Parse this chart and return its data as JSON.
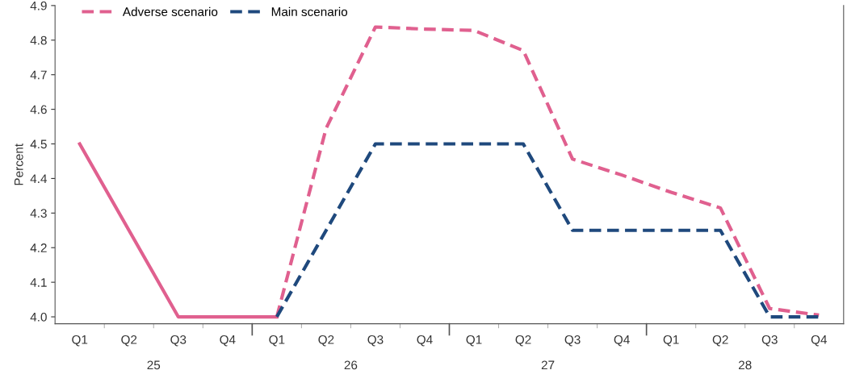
{
  "chart_data": {
    "type": "line",
    "ylabel": "Percent",
    "categories": [
      "Q1",
      "Q2",
      "Q3",
      "Q4",
      "Q1",
      "Q2",
      "Q3",
      "Q4",
      "Q1",
      "Q2",
      "Q3",
      "Q4",
      "Q1",
      "Q2",
      "Q3",
      "Q4"
    ],
    "annotations": [
      "25",
      "26",
      "27",
      "28"
    ],
    "series": [
      {
        "color": "#e0608f",
        "line_style": "solid",
        "values": [
          4.5,
          4.25,
          4.0,
          4.0,
          4.0,
          null,
          null,
          null,
          null,
          null,
          null,
          null,
          null,
          null,
          null,
          null
        ]
      },
      {
        "name": "Adverse scenario",
        "color": "#e0608f",
        "line_style": "dashed",
        "values": [
          null,
          null,
          null,
          null,
          4.0,
          4.545,
          4.838,
          4.832,
          4.828,
          4.77,
          4.456,
          4.41,
          4.36,
          4.315,
          4.024,
          4.005
        ]
      },
      {
        "name": "Main scenario",
        "color": "#1f497d",
        "line_style": "dashed",
        "values": [
          null,
          null,
          null,
          null,
          4.0,
          4.25,
          4.5,
          4.5,
          4.5,
          4.5,
          4.25,
          4.25,
          4.25,
          4.25,
          4.0,
          4.0
        ]
      }
    ],
    "ylim": [
      3.98,
      4.9
    ],
    "yticks": [
      {
        "value": 4.0,
        "label": "4.0"
      },
      4.1,
      4.2,
      4.3,
      4.4,
      4.5,
      4.6,
      4.7,
      4.8,
      4.9
    ],
    "grid": false,
    "legend": "top left"
  }
}
